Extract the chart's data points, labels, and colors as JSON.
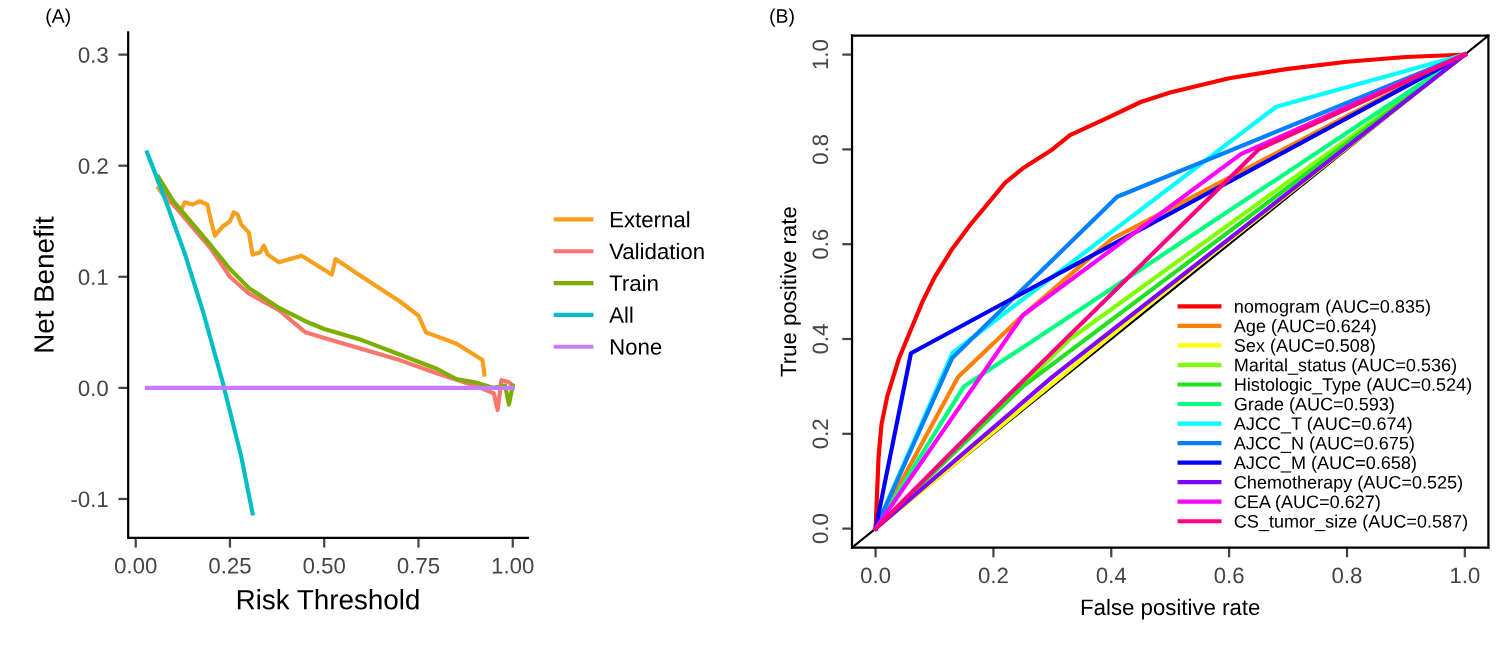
{
  "chart_data": [
    {
      "type": "line",
      "title": "(A)",
      "xlabel": "Risk Threshold",
      "ylabel": "Net Benefit",
      "xlim": [
        -0.02,
        1.04
      ],
      "ylim": [
        -0.135,
        0.32
      ],
      "xticks": [
        {
          "value": 0,
          "label": "0.00"
        },
        {
          "value": 0.25,
          "label": "0.25"
        },
        {
          "value": 0.5,
          "label": "0.50"
        },
        {
          "value": 0.75,
          "label": "0.75"
        },
        {
          "value": 1,
          "label": "1.00"
        }
      ],
      "yticks": [
        {
          "value": -0.1,
          "label": "-0.1"
        },
        {
          "value": 0,
          "label": "0.0"
        },
        {
          "value": 0.1,
          "label": "0.1"
        },
        {
          "value": 0.2,
          "label": "0.2"
        },
        {
          "value": 0.3,
          "label": "0.3"
        }
      ],
      "legend": "right",
      "grid": false,
      "marker": "none",
      "line_style": "solid",
      "series": [
        {
          "name": "External",
          "color": "#f8a01e",
          "x": [
            0.06,
            0.08,
            0.1,
            0.12,
            0.13,
            0.15,
            0.17,
            0.19,
            0.2,
            0.21,
            0.23,
            0.25,
            0.26,
            0.27,
            0.28,
            0.3,
            0.31,
            0.33,
            0.34,
            0.35,
            0.38,
            0.44,
            0.52,
            0.53,
            0.6,
            0.7,
            0.75,
            0.77,
            0.85,
            0.92,
            0.925
          ],
          "values": [
            0.18,
            0.17,
            0.165,
            0.16,
            0.167,
            0.165,
            0.168,
            0.165,
            0.15,
            0.137,
            0.145,
            0.15,
            0.158,
            0.156,
            0.147,
            0.14,
            0.12,
            0.122,
            0.128,
            0.12,
            0.113,
            0.119,
            0.102,
            0.116,
            0.1,
            0.078,
            0.065,
            0.05,
            0.04,
            0.025,
            0.012
          ]
        },
        {
          "name": "Validation",
          "color": "#f8766d",
          "x": [
            0.06,
            0.1,
            0.15,
            0.2,
            0.25,
            0.3,
            0.38,
            0.45,
            0.5,
            0.6,
            0.7,
            0.8,
            0.9,
            0.95,
            0.96,
            0.97,
            0.99,
            1.0
          ],
          "values": [
            0.185,
            0.165,
            0.145,
            0.125,
            0.1,
            0.085,
            0.07,
            0.05,
            0.045,
            0.035,
            0.025,
            0.013,
            0.002,
            -0.005,
            -0.02,
            0.007,
            0.005,
            0.002
          ]
        },
        {
          "name": "Train",
          "color": "#7cae00",
          "x": [
            0.06,
            0.1,
            0.15,
            0.2,
            0.25,
            0.3,
            0.38,
            0.45,
            0.5,
            0.6,
            0.7,
            0.8,
            0.85,
            0.9,
            0.95,
            0.98,
            0.99,
            1.0
          ],
          "values": [
            0.19,
            0.168,
            0.148,
            0.128,
            0.107,
            0.09,
            0.072,
            0.06,
            0.053,
            0.043,
            0.03,
            0.017,
            0.008,
            0.005,
            0.0,
            0.002,
            -0.015,
            0.002
          ]
        },
        {
          "name": "All",
          "color": "#00bfc4",
          "x": [
            0.03,
            0.08,
            0.13,
            0.18,
            0.23,
            0.28,
            0.31
          ],
          "values": [
            0.212,
            0.168,
            0.121,
            0.067,
            0.006,
            -0.062,
            -0.113
          ]
        },
        {
          "name": "None",
          "color": "#c77cff",
          "x": [
            0.03,
            1.0
          ],
          "values": [
            0,
            0
          ]
        }
      ]
    },
    {
      "type": "line",
      "title": "(B)",
      "xlabel": "False positive rate",
      "ylabel": "True positive rate",
      "xlim": [
        -0.04,
        1.04
      ],
      "ylim": [
        -0.04,
        1.04
      ],
      "xticks": [
        {
          "value": 0,
          "label": "0.0"
        },
        {
          "value": 0.2,
          "label": "0.2"
        },
        {
          "value": 0.4,
          "label": "0.4"
        },
        {
          "value": 0.6,
          "label": "0.6"
        },
        {
          "value": 0.8,
          "label": "0.8"
        },
        {
          "value": 1,
          "label": "1.0"
        }
      ],
      "yticks": [
        {
          "value": 0,
          "label": "0.0"
        },
        {
          "value": 0.2,
          "label": "0.2"
        },
        {
          "value": 0.4,
          "label": "0.4"
        },
        {
          "value": 0.6,
          "label": "0.6"
        },
        {
          "value": 0.8,
          "label": "0.8"
        },
        {
          "value": 1,
          "label": "1.0"
        }
      ],
      "legend": "bottom right",
      "grid": false,
      "marker": "none",
      "line_style": "solid",
      "series": [
        {
          "color": "#000000",
          "x": [
            -0.04,
            1.04
          ],
          "values": [
            -0.04,
            1.04
          ]
        },
        {
          "name": "nomogram (AUC=0.835)",
          "color": "#ff0000",
          "x": [
            0,
            0.005,
            0.01,
            0.02,
            0.04,
            0.06,
            0.08,
            0.1,
            0.13,
            0.16,
            0.2,
            0.22,
            0.25,
            0.3,
            0.33,
            0.4,
            0.45,
            0.5,
            0.6,
            0.7,
            0.8,
            0.9,
            1
          ],
          "values": [
            0,
            0.15,
            0.22,
            0.28,
            0.36,
            0.42,
            0.48,
            0.53,
            0.59,
            0.64,
            0.7,
            0.73,
            0.76,
            0.8,
            0.83,
            0.87,
            0.9,
            0.92,
            0.95,
            0.97,
            0.985,
            0.995,
            1
          ]
        },
        {
          "name": "Age (AUC=0.624)",
          "color": "#ff8000",
          "x": [
            0,
            0.14,
            0.25,
            0.4,
            0.8,
            1
          ],
          "values": [
            0,
            0.32,
            0.45,
            0.61,
            0.87,
            1
          ]
        },
        {
          "name": "Sex (AUC=0.508)",
          "color": "#ffff00",
          "x": [
            0,
            0.5,
            1
          ],
          "values": [
            0,
            0.51,
            1
          ]
        },
        {
          "name": "Marital_status (AUC=0.536)",
          "color": "#80ff00",
          "x": [
            0,
            0.33,
            1
          ],
          "values": [
            0,
            0.4,
            1
          ]
        },
        {
          "name": "Histologic_Type (AUC=0.524)",
          "color": "#20e020",
          "x": [
            0,
            0.25,
            1
          ],
          "values": [
            0,
            0.3,
            1
          ]
        },
        {
          "name": "Grade (AUC=0.593)",
          "color": "#00ff80",
          "x": [
            0,
            0.15,
            1
          ],
          "values": [
            0,
            0.3,
            1
          ]
        },
        {
          "name": "AJCC_T (AUC=0.674)",
          "color": "#00ffff",
          "x": [
            0,
            0.13,
            0.68,
            1
          ],
          "values": [
            0,
            0.37,
            0.89,
            1
          ]
        },
        {
          "name": "AJCC_N (AUC=0.675)",
          "color": "#0080ff",
          "x": [
            0,
            0.13,
            0.41,
            1
          ],
          "values": [
            0,
            0.36,
            0.7,
            1
          ]
        },
        {
          "name": "AJCC_M (AUC=0.658)",
          "color": "#0000ff",
          "x": [
            0,
            0.06,
            1
          ],
          "values": [
            0,
            0.37,
            1
          ]
        },
        {
          "name": "Chemotherapy (AUC=0.525)",
          "color": "#8000ff",
          "x": [
            0,
            0.3,
            1
          ],
          "values": [
            0,
            0.32,
            1
          ]
        },
        {
          "name": "CEA (AUC=0.627)",
          "color": "#ff00ff",
          "x": [
            0,
            0.25,
            0.62,
            1
          ],
          "values": [
            0,
            0.45,
            0.79,
            1
          ]
        },
        {
          "name": "CS_tumor_size (AUC=0.587)",
          "color": "#ff0080",
          "x": [
            0,
            0.2,
            0.65,
            1
          ],
          "values": [
            0,
            0.25,
            0.8,
            1
          ]
        }
      ]
    }
  ]
}
